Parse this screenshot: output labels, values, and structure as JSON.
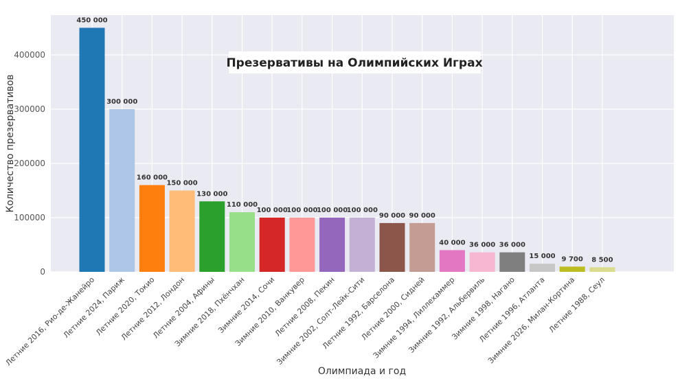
{
  "chart_data": {
    "type": "bar",
    "title": "Презервативы на Олимпийских Играх",
    "xlabel": "Олимпиада и год",
    "ylabel": "Количество презервативов",
    "ylim": [
      0,
      473400
    ],
    "yticks": [
      0,
      100000,
      200000,
      300000,
      400000
    ],
    "ytick_labels": [
      "0",
      "100000",
      "200000",
      "300000",
      "400000"
    ],
    "grid": true,
    "legend": "none",
    "categories": [
      "Летние 2016, Рио-де-Жанейро",
      "Летние 2024, Париж",
      "Летние 2020, Токио",
      "Летние 2012, Лондон",
      "Летние 2004, Афины",
      "Зимние 2018, Пхёнчхан",
      "Зимние 2014, Сочи",
      "Зимние 2010, Ванкувер",
      "Летние 2008, Пекин",
      "Зимние 2002, Солт-Лейк-Сити",
      "Летние 1992, Барселона",
      "Летние 2000, Сидней",
      "Зимние 1994, Лиллехаммер",
      "Зимние 1992, Альбервиль",
      "Зимние 1998, Нагано",
      "Летние 1996, Атланта",
      "Зимние 2026, Милан-Кортина",
      "Летние 1988, Сеул"
    ],
    "values": [
      450000,
      300000,
      160000,
      150000,
      130000,
      110000,
      100000,
      100000,
      100000,
      100000,
      90000,
      90000,
      40000,
      36000,
      36000,
      15000,
      9700,
      8500
    ],
    "data_labels": [
      "450 000",
      "300 000",
      "160 000",
      "150 000",
      "130 000",
      "110 000",
      "100 000",
      "100 000",
      "100 000",
      "100 000",
      "90 000",
      "90 000",
      "40 000",
      "36 000",
      "36 000",
      "15 000",
      "9 700",
      "8 500"
    ],
    "colors": [
      "#1f77b4",
      "#aec7e8",
      "#ff7f0e",
      "#ffbb78",
      "#2ca02c",
      "#98df8a",
      "#d62728",
      "#ff9896",
      "#9467bd",
      "#c5b0d5",
      "#8c564b",
      "#c49c94",
      "#e377c2",
      "#f7b6d2",
      "#7f7f7f",
      "#c7c7c7",
      "#bcbd22",
      "#dbdb8d"
    ],
    "background_color": "#eaeaf2",
    "grid_color": "#ffffff"
  }
}
